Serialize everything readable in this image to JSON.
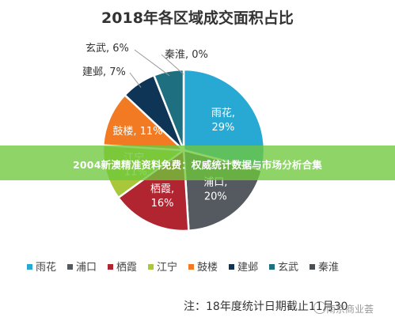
{
  "chart_data": {
    "type": "pie",
    "title": "2018年各区域成交面积占比",
    "slices": [
      {
        "name": "雨花",
        "label": "雨花,",
        "percent_label": "29%",
        "value": 29,
        "color": "#27a9d4"
      },
      {
        "name": "浦口",
        "label": "浦口,",
        "percent_label": "20%",
        "value": 20,
        "color": "#555a60"
      },
      {
        "name": "栖霞",
        "label": "栖霞,",
        "percent_label": "16%",
        "value": 16,
        "color": "#b02530"
      },
      {
        "name": "江宁",
        "label": "江宁,",
        "percent_label": "11%",
        "value": 11,
        "color": "#a9c73a"
      },
      {
        "name": "鼓楼",
        "label": "鼓楼, 11%",
        "percent_label": "",
        "value": 11,
        "color": "#f27a22"
      },
      {
        "name": "建邺",
        "label": "建邺, 7%",
        "percent_label": "",
        "value": 7,
        "color": "#0f3556"
      },
      {
        "name": "玄武",
        "label": "玄武, 6%",
        "percent_label": "",
        "value": 6,
        "color": "#1e6f80"
      },
      {
        "name": "秦淮",
        "label": "秦淮, 0%",
        "percent_label": "",
        "value": 0,
        "color": "#4a4f56"
      }
    ],
    "legend_position": "bottom"
  },
  "banner": {
    "text": "2004新澳精准资料免费：权威统计数据与市场分析合集"
  },
  "note": {
    "text": "注：18年度统计日期截止11月30"
  },
  "watermark": {
    "text": "南京商业荟"
  }
}
